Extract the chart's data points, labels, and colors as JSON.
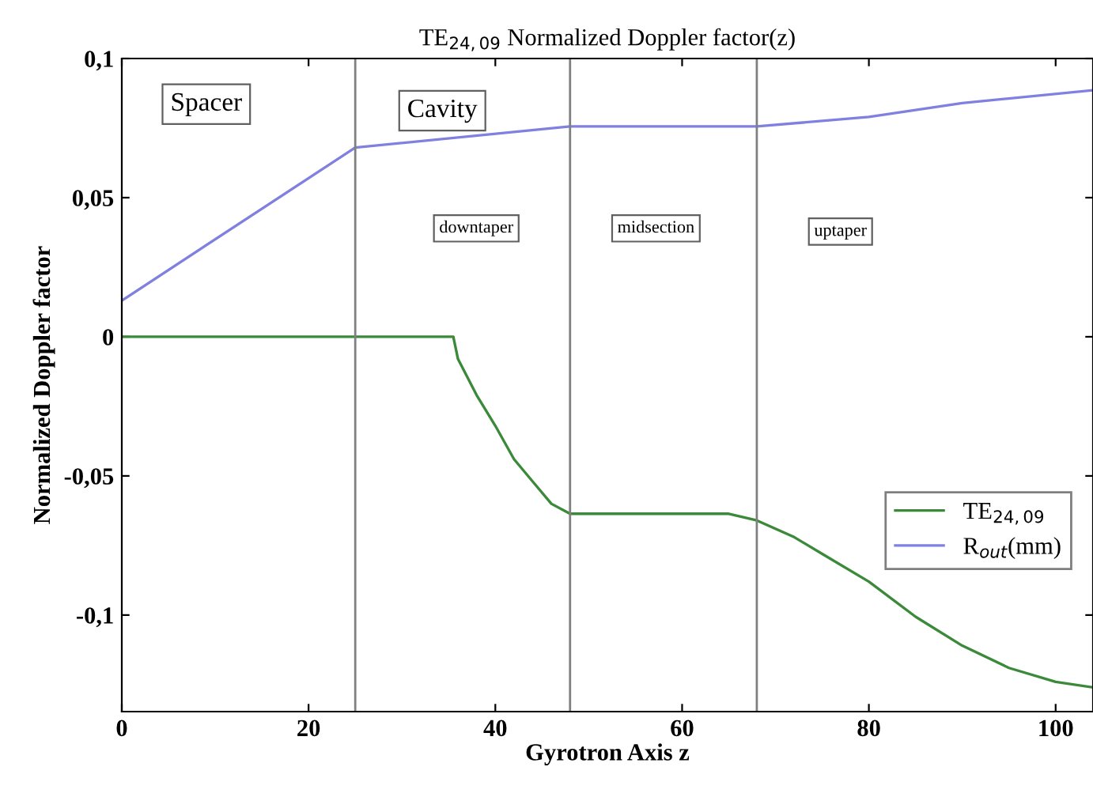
{
  "chart_data": {
    "type": "line",
    "title": "TE$_{24,09}$ Normalized Doppler factor(z)",
    "xlabel": "Gyrotron Axis z",
    "ylabel": "Normalized Doppler factor",
    "series": [
      {
        "name": "TE$_{24,09}$",
        "color": "#3a8a3a",
        "x": [
          0,
          10,
          20,
          30,
          35.5,
          36,
          38,
          40,
          42,
          44,
          46,
          48,
          55,
          65,
          68,
          72,
          75,
          80,
          85,
          90,
          95,
          100,
          104
        ],
        "values": [
          0,
          0,
          0,
          0,
          0,
          -0.008,
          -0.021,
          -0.032,
          -0.044,
          -0.052,
          -0.06,
          -0.0636,
          -0.0636,
          -0.0636,
          -0.066,
          -0.072,
          -0.078,
          -0.088,
          -0.1006,
          -0.111,
          -0.119,
          -0.124,
          -0.126
        ]
      },
      {
        "name": "R$_{out}$(mm)",
        "color": "#8080e0",
        "x": [
          0,
          25,
          48,
          68,
          80,
          90,
          104
        ],
        "values": [
          0.013,
          0.068,
          0.0756,
          0.0756,
          0.079,
          0.084,
          0.0886
        ]
      }
    ],
    "xlim": [
      0,
      104
    ],
    "xticks": [
      0,
      20,
      40,
      60,
      80,
      100
    ],
    "ylim": [
      -0.1347,
      0.1
    ],
    "yticks": [
      {
        "value": -0.1,
        "label": "-0,1"
      },
      {
        "value": -0.05,
        "label": "-0,05"
      },
      0,
      {
        "value": 0.05,
        "label": "0,05"
      },
      {
        "value": 0.1,
        "label": "0,1"
      }
    ],
    "ref_lines": [
      {
        "axis": "x",
        "value": 25,
        "color": "#808080"
      },
      {
        "axis": "x",
        "value": 48,
        "color": "#808080"
      },
      {
        "axis": "x",
        "value": 68,
        "color": "#808080"
      }
    ],
    "annotations": [
      "Spacer",
      "Cavity",
      "downtaper",
      "midsection",
      "uptaper"
    ],
    "legend": "bottom right",
    "grid": false,
    "line_style": "solid",
    "marker": "none"
  }
}
